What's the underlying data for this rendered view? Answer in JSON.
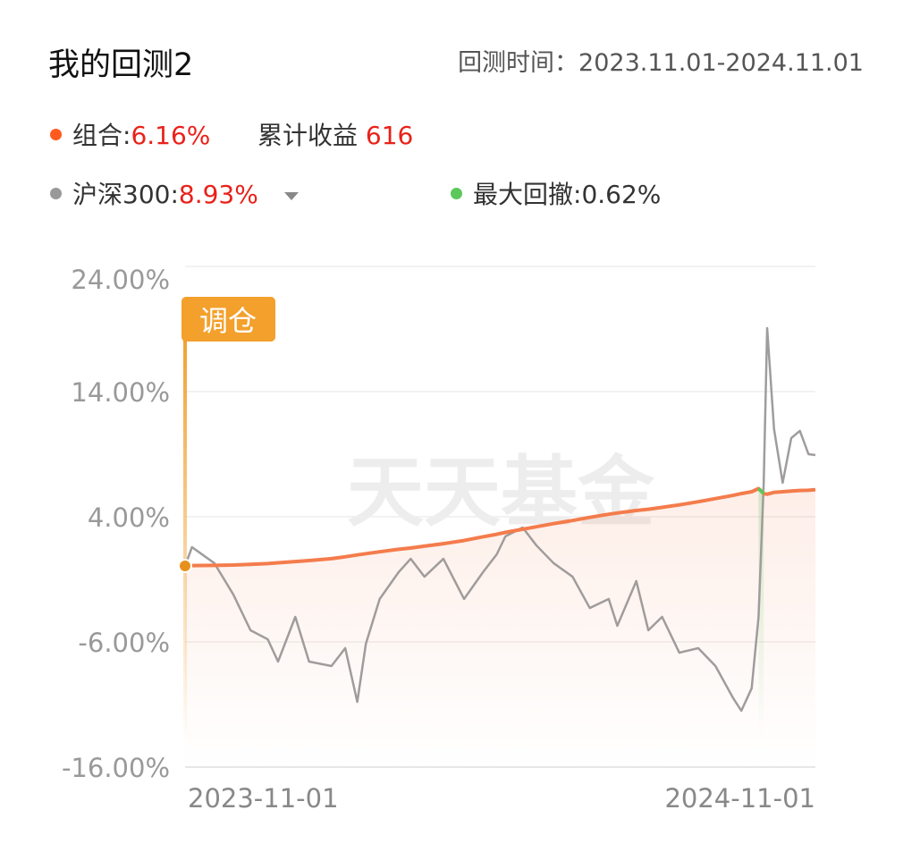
{
  "chart_data": {
    "type": "line",
    "title": "我的回测2",
    "period": "回测时间：2023.11.01-2024.11.01",
    "cumulative": {
      "label": "累计收益",
      "value": "616"
    },
    "max_drawdown": {
      "label": "最大回撤:",
      "value": "0.62%",
      "color": "#5cc85c",
      "x": [
        333,
        336
      ]
    },
    "rebalance_tag": "调仓",
    "watermark": "天天基金",
    "x": [
      0,
      4,
      17,
      28,
      38,
      48,
      54,
      64,
      72,
      85,
      93,
      100,
      105,
      113,
      124,
      131,
      139,
      150,
      162,
      173,
      181,
      186,
      196,
      204,
      214,
      225,
      235,
      246,
      251,
      262,
      269,
      277,
      287,
      298,
      308,
      318,
      323,
      329,
      333,
      336,
      338,
      342,
      347,
      352,
      357,
      362,
      366
    ],
    "xlim": [
      0,
      366
    ],
    "xticks": [
      {
        "value": 0,
        "label": "2023-11-01"
      },
      {
        "value": 366,
        "label": "2024-11-01"
      }
    ],
    "ylim": [
      -16,
      24
    ],
    "yticks": [
      {
        "value": 24,
        "label": "24.00%"
      },
      {
        "value": 14,
        "label": "14.00%"
      },
      {
        "value": 4,
        "label": "4.00%"
      },
      {
        "value": -6,
        "label": "-6.00%"
      },
      {
        "value": -16,
        "label": "-16.00%"
      }
    ],
    "grid": true,
    "series": [
      {
        "name": "组合:",
        "summary": "6.16%",
        "color": "#f47c4c",
        "dot_color": "#ff5a1f",
        "values": [
          0.07,
          0.1,
          0.12,
          0.14,
          0.2,
          0.26,
          0.32,
          0.42,
          0.5,
          0.65,
          0.8,
          0.95,
          1.05,
          1.2,
          1.4,
          1.5,
          1.65,
          1.85,
          2.1,
          2.4,
          2.6,
          2.75,
          3.0,
          3.2,
          3.45,
          3.7,
          3.95,
          4.2,
          4.3,
          4.5,
          4.6,
          4.75,
          4.95,
          5.2,
          5.45,
          5.7,
          5.85,
          6.0,
          6.25,
          5.85,
          5.8,
          5.95,
          6.0,
          6.05,
          6.1,
          6.12,
          6.16
        ]
      },
      {
        "name": "沪深300:",
        "summary": "8.93%",
        "color": "#a09c9c",
        "dot_color": "#999999",
        "values": [
          0.07,
          1.57,
          0.29,
          -2.21,
          -5.07,
          -5.79,
          -7.57,
          -4.0,
          -7.57,
          -7.93,
          -6.5,
          -10.79,
          -6.14,
          -2.57,
          -0.43,
          0.64,
          -0.79,
          0.64,
          -2.57,
          -0.43,
          1.0,
          2.43,
          3.14,
          1.71,
          0.29,
          -0.79,
          -3.29,
          -2.57,
          -4.71,
          -1.14,
          -5.07,
          -4.0,
          -6.86,
          -6.5,
          -7.93,
          -10.43,
          -11.5,
          -9.71,
          -4.0,
          6.71,
          19.07,
          11.0,
          6.71,
          10.29,
          10.86,
          9.0,
          8.93
        ]
      }
    ]
  }
}
